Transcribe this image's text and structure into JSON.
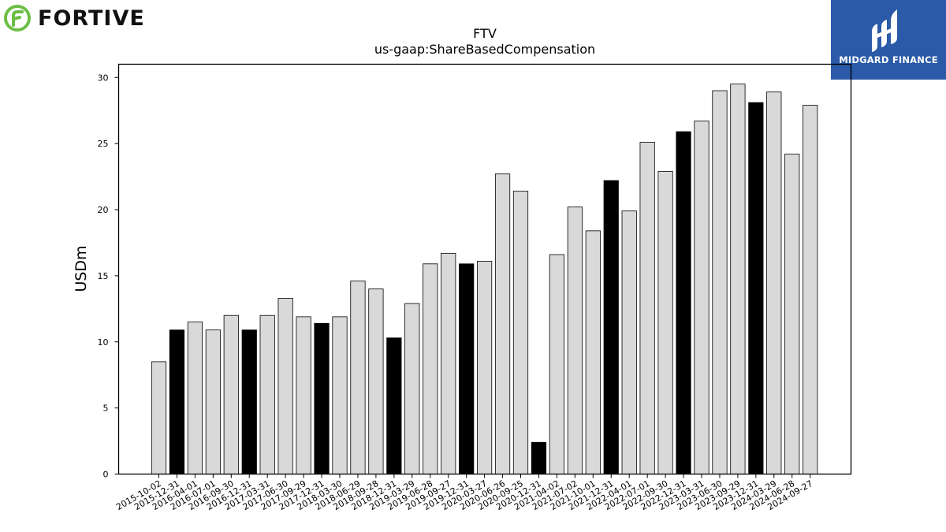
{
  "logos": {
    "left_brand": "FORTIVE",
    "left_brand_color": "#6cbe45",
    "right_brand": "MIDGARD FINANCE",
    "right_brand_bg": "#2a5aa8"
  },
  "chart_data": {
    "type": "bar",
    "title": "FTV",
    "subtitle": "us-gaap:ShareBasedCompensation",
    "xlabel": "",
    "ylabel": "USDm",
    "ylim": [
      0,
      31
    ],
    "yticks": [
      0,
      5,
      10,
      15,
      20,
      25,
      30
    ],
    "grid": false,
    "colors": {
      "quarter": "#d9d9d9",
      "year_end": "#000000",
      "edge": "#000000"
    },
    "categories": [
      "2015-10-02",
      "2015-12-31",
      "2016-04-01",
      "2016-07-01",
      "2016-09-30",
      "2016-12-31",
      "2017-03-31",
      "2017-06-30",
      "2017-09-29",
      "2017-12-31",
      "2018-03-30",
      "2018-06-29",
      "2018-09-28",
      "2018-12-31",
      "2019-03-29",
      "2019-06-28",
      "2019-09-27",
      "2019-12-31",
      "2020-03-27",
      "2020-06-26",
      "2020-09-25",
      "2020-12-31",
      "2021-04-02",
      "2021-07-02",
      "2021-10-01",
      "2021-12-31",
      "2022-04-01",
      "2022-07-01",
      "2022-09-30",
      "2022-12-31",
      "2023-03-31",
      "2023-06-30",
      "2023-09-29",
      "2023-12-31",
      "2024-03-29",
      "2024-06-28",
      "2024-09-27"
    ],
    "values": [
      8.5,
      10.9,
      11.5,
      10.9,
      12.0,
      10.9,
      12.0,
      13.3,
      11.9,
      11.4,
      11.9,
      14.6,
      14.0,
      10.3,
      12.9,
      15.9,
      16.7,
      15.9,
      16.1,
      22.7,
      21.4,
      2.4,
      16.6,
      20.2,
      18.4,
      22.2,
      19.9,
      25.1,
      22.9,
      25.9,
      26.7,
      29.0,
      29.5,
      28.1,
      28.9,
      24.2,
      27.9
    ],
    "highlight": [
      false,
      true,
      false,
      false,
      false,
      true,
      false,
      false,
      false,
      true,
      false,
      false,
      false,
      true,
      false,
      false,
      false,
      true,
      false,
      false,
      false,
      true,
      false,
      false,
      false,
      true,
      false,
      false,
      false,
      true,
      false,
      false,
      false,
      true,
      false,
      false,
      false
    ]
  }
}
